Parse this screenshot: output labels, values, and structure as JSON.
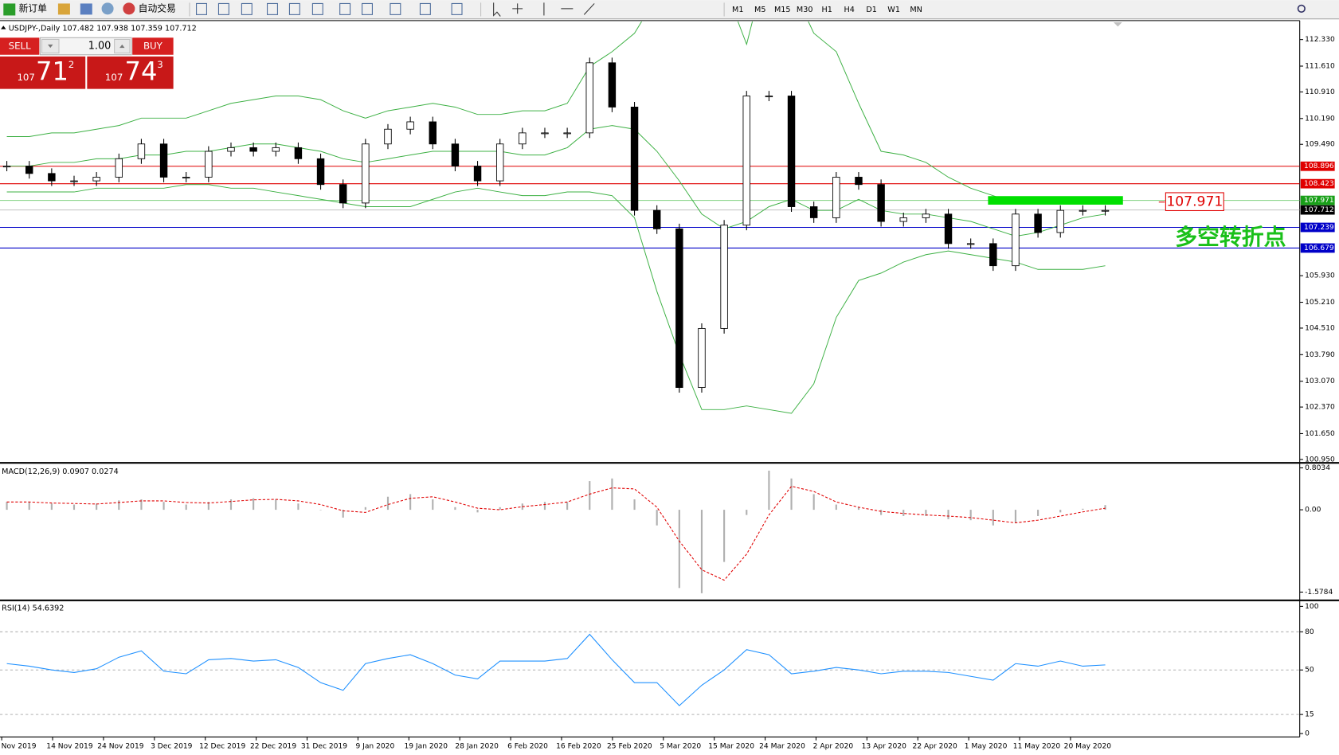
{
  "toolbar": {
    "new_order": "新订单",
    "auto_trading": "自动交易",
    "timeframes": [
      "M1",
      "M5",
      "M15",
      "M30",
      "H1",
      "H4",
      "D1",
      "W1",
      "MN"
    ]
  },
  "trade_panel": {
    "sell": "SELL",
    "buy": "BUY",
    "lot": "1.00",
    "sell_price": {
      "prefix": "107",
      "big": "71",
      "sup": "2"
    },
    "buy_price": {
      "prefix": "107",
      "big": "74",
      "sup": "3"
    }
  },
  "x_labels": [
    "Nov 2019",
    "14 Nov 2019",
    "24 Nov 2019",
    "3 Dec 2019",
    "12 Dec 2019",
    "22 Dec 2019",
    "31 Dec 2019",
    "9 Jan 2020",
    "19 Jan 2020",
    "28 Jan 2020",
    "6 Feb 2020",
    "16 Feb 2020",
    "25 Feb 2020",
    "5 Mar 2020",
    "15 Mar 2020",
    "24 Mar 2020",
    "2 Apr 2020",
    "13 Apr 2020",
    "22 Apr 2020",
    "1 May 2020",
    "11 May 2020",
    "20 May 2020"
  ],
  "chart_data": [
    {
      "type": "candlestick",
      "title": "USDJPY-,Daily  107.482 107.938 107.359 107.712",
      "close": [
        108.9,
        108.7,
        108.5,
        108.5,
        108.6,
        109.1,
        109.5,
        108.6,
        108.6,
        109.3,
        109.4,
        109.3,
        109.4,
        109.1,
        108.4,
        107.9,
        109.5,
        109.9,
        110.1,
        109.5,
        108.9,
        108.5,
        109.5,
        109.8,
        109.8,
        109.8,
        111.7,
        110.5,
        107.7,
        107.2,
        102.9,
        104.5,
        107.3,
        110.8,
        110.8,
        107.8,
        107.5,
        108.6,
        108.4,
        107.4,
        107.5,
        107.6,
        106.8,
        106.8,
        106.2,
        107.6,
        107.1,
        107.7,
        107.7,
        107.7
      ],
      "upper": [
        109.7,
        109.7,
        109.8,
        109.8,
        109.9,
        110.0,
        110.2,
        110.2,
        110.2,
        110.4,
        110.6,
        110.7,
        110.8,
        110.8,
        110.7,
        110.4,
        110.2,
        110.4,
        110.5,
        110.6,
        110.5,
        110.3,
        110.3,
        110.4,
        110.4,
        110.6,
        111.6,
        112.0,
        112.5,
        113.5,
        114.6,
        114.7,
        113.8,
        112.2,
        114.6,
        113.8,
        112.5,
        112.0,
        110.6,
        109.3,
        109.2,
        109.0,
        108.6,
        108.3,
        108.1,
        107.9,
        107.9,
        107.9,
        107.9,
        108.0
      ],
      "middle": [
        108.9,
        108.9,
        109.0,
        109.0,
        109.1,
        109.1,
        109.2,
        109.2,
        109.3,
        109.3,
        109.4,
        109.5,
        109.5,
        109.4,
        109.3,
        109.1,
        109.0,
        109.1,
        109.2,
        109.3,
        109.3,
        109.3,
        109.3,
        109.2,
        109.2,
        109.4,
        109.9,
        110.0,
        109.9,
        109.3,
        108.5,
        107.6,
        107.2,
        107.4,
        107.8,
        108.0,
        107.7,
        107.7,
        108.0,
        107.7,
        107.6,
        107.6,
        107.5,
        107.4,
        107.2,
        107.0,
        107.1,
        107.3,
        107.5,
        107.6
      ],
      "lower": [
        108.2,
        108.2,
        108.2,
        108.2,
        108.3,
        108.3,
        108.3,
        108.3,
        108.4,
        108.4,
        108.3,
        108.3,
        108.2,
        108.1,
        108.0,
        107.9,
        107.8,
        107.8,
        107.8,
        108.0,
        108.2,
        108.3,
        108.2,
        108.1,
        108.1,
        108.2,
        108.2,
        108.1,
        107.5,
        105.5,
        103.8,
        102.3,
        102.3,
        102.4,
        102.3,
        102.2,
        103.0,
        104.8,
        105.8,
        106.0,
        106.3,
        106.5,
        106.6,
        106.5,
        106.4,
        106.3,
        106.1,
        106.1,
        106.1,
        106.2
      ],
      "ylim": [
        100.88,
        112.82
      ],
      "yticks": [
        {
          "value": 112.33,
          "label": "112.330"
        },
        {
          "value": 111.61,
          "label": "111.610"
        },
        {
          "value": 110.91,
          "label": "110.910"
        },
        {
          "value": 110.19,
          "label": "110.190"
        },
        {
          "value": 109.49,
          "label": "109.490"
        },
        {
          "value": 105.93,
          "label": "105.930"
        },
        {
          "value": 105.21,
          "label": "105.210"
        },
        {
          "value": 104.51,
          "label": "104.510"
        },
        {
          "value": 103.79,
          "label": "103.790"
        },
        {
          "value": 103.07,
          "label": "103.070"
        },
        {
          "value": 102.37,
          "label": "102.370"
        },
        {
          "value": 101.65,
          "label": "101.650"
        },
        {
          "value": 100.95,
          "label": "100.950"
        }
      ],
      "levels": [
        {
          "value": 108.896,
          "color": "#e00000",
          "label_color": "#e00000"
        },
        {
          "value": 108.423,
          "color": "#e00000",
          "label_color": "#e00000"
        },
        {
          "value": 107.971,
          "color": "#7fd17f",
          "label_color": "#18a018"
        },
        {
          "value": 107.712,
          "color": "#c0c0c0",
          "label_color": "#000000"
        },
        {
          "value": 107.239,
          "color": "#0000c8",
          "label_color": "#0000c8"
        },
        {
          "value": 106.679,
          "color": "#0000c8",
          "label_color": "#0000c8"
        }
      ],
      "annotation": {
        "price": 107.971,
        "text": "多空转折点"
      },
      "band_color": "#3cb043",
      "up_color": "#ffffff",
      "down_color": "#000000"
    },
    {
      "type": "macd",
      "title": "MACD(12,26,9) 0.0907 0.0274",
      "histogram": [
        0.15,
        0.15,
        0.12,
        0.1,
        0.12,
        0.18,
        0.2,
        0.15,
        0.1,
        0.15,
        0.2,
        0.22,
        0.2,
        0.12,
        0.0,
        -0.15,
        0.05,
        0.25,
        0.3,
        0.2,
        0.05,
        -0.05,
        0.05,
        0.12,
        0.15,
        0.15,
        0.55,
        0.6,
        0.2,
        -0.3,
        -1.5,
        -1.6,
        -1.0,
        -0.1,
        0.75,
        0.6,
        0.3,
        0.1,
        0.05,
        -0.1,
        -0.12,
        -0.12,
        -0.18,
        -0.2,
        -0.3,
        -0.25,
        -0.12,
        -0.05,
        0.02,
        0.09
      ],
      "signal": [
        0.15,
        0.15,
        0.13,
        0.12,
        0.11,
        0.14,
        0.17,
        0.17,
        0.14,
        0.13,
        0.16,
        0.19,
        0.2,
        0.17,
        0.1,
        -0.02,
        -0.05,
        0.1,
        0.22,
        0.25,
        0.15,
        0.03,
        0.0,
        0.06,
        0.1,
        0.15,
        0.3,
        0.42,
        0.4,
        0.05,
        -0.6,
        -1.15,
        -1.35,
        -0.85,
        -0.1,
        0.45,
        0.35,
        0.15,
        0.05,
        -0.03,
        -0.07,
        -0.1,
        -0.12,
        -0.15,
        -0.2,
        -0.25,
        -0.2,
        -0.12,
        -0.04,
        0.03
      ],
      "ylim": [
        -1.72,
        0.85
      ],
      "yticks": [
        0.8034,
        {
          "value": 0,
          "label": "0.00"
        },
        -1.5784
      ],
      "histogram_color": "#b0b0b0",
      "signal_color": "#e00000"
    },
    {
      "type": "rsi",
      "title": "RSI(14) 54.6392",
      "values": [
        55,
        53,
        50,
        48,
        51,
        60,
        65,
        49,
        47,
        58,
        59,
        57,
        58,
        52,
        40,
        34,
        55,
        59,
        62,
        55,
        46,
        43,
        57,
        57,
        57,
        59,
        78,
        58,
        40,
        40,
        22,
        38,
        50,
        66,
        62,
        47,
        49,
        52,
        50,
        47,
        49,
        49,
        48,
        45,
        42,
        55,
        53,
        57,
        53,
        54
      ],
      "ylim": [
        -2,
        103.4
      ],
      "yticks": [
        100,
        80,
        50,
        15,
        0
      ],
      "levels": [
        80,
        50,
        15
      ],
      "color": "#1e90ff"
    }
  ]
}
